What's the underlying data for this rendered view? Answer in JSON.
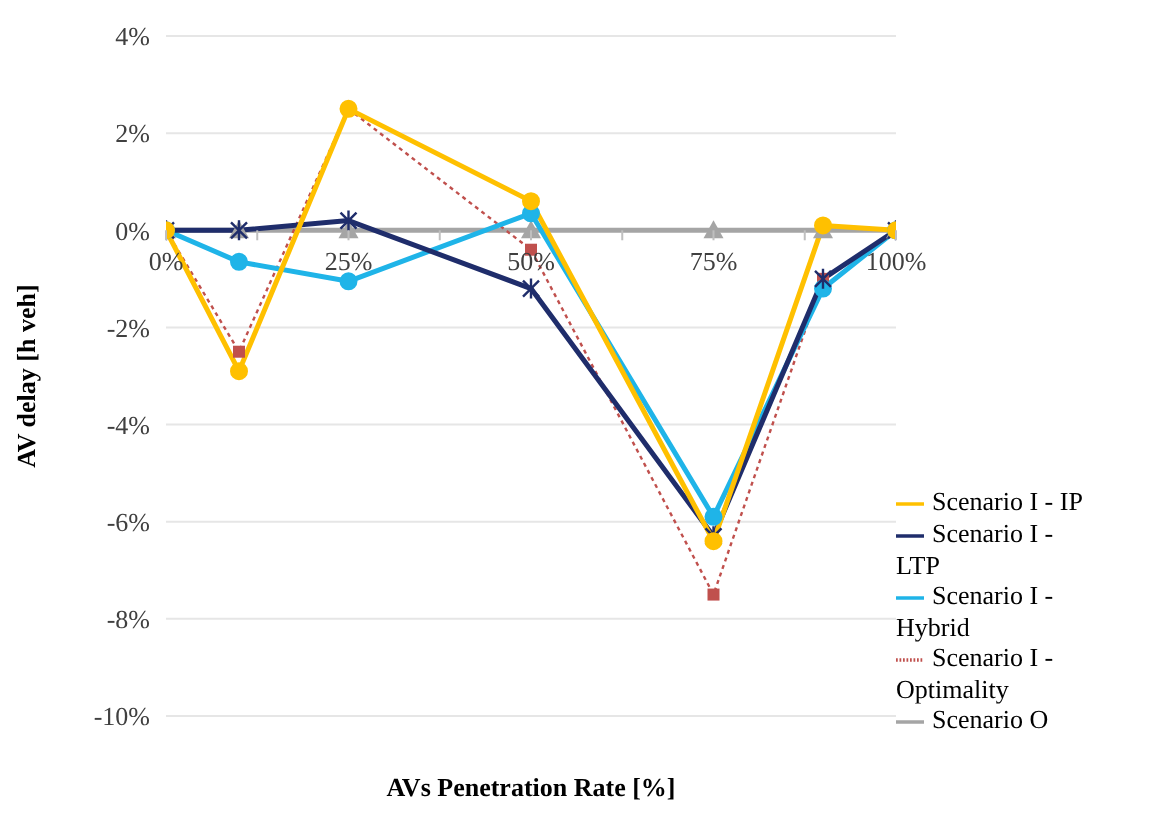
{
  "chart_data": {
    "type": "line",
    "xlabel": "AVs Penetration Rate [%]",
    "ylabel": "AV delay [h veh]",
    "x": [
      0,
      10,
      25,
      50,
      75,
      90,
      100
    ],
    "series": [
      {
        "name": "Scenario I - IP",
        "color": "#ffc000",
        "values": [
          0,
          -2.9,
          2.5,
          0.6,
          -6.4,
          0.1,
          0
        ],
        "marker": "circle",
        "line_style": "solid"
      },
      {
        "name": "Scenario I - LTP",
        "color": "#1f2d6b",
        "values": [
          0,
          0,
          0.2,
          -1.2,
          -6.3,
          -1.0,
          0
        ],
        "marker": "cross",
        "line_style": "solid"
      },
      {
        "name": "Scenario I - Hybrid",
        "color": "#1fb4e8",
        "values": [
          0,
          -0.65,
          -1.05,
          0.35,
          -5.9,
          -1.2,
          0
        ],
        "marker": "circle",
        "line_style": "solid"
      },
      {
        "name": "Scenario I - Optimality",
        "color": "#c0504d",
        "values": [
          0,
          -2.5,
          2.5,
          -0.4,
          -7.5,
          -1.0,
          0
        ],
        "marker": "square",
        "line_style": "dotted"
      },
      {
        "name": "Scenario O",
        "color": "#a5a5a5",
        "values": [
          0,
          0,
          0,
          0,
          0,
          0,
          0
        ],
        "marker": "triangle",
        "line_style": "solid"
      }
    ],
    "xlim": [
      0,
      100
    ],
    "xticks": [
      {
        "value": 0,
        "label": "0%"
      },
      {
        "value": 12.5,
        "label": null
      },
      {
        "value": 25,
        "label": "25%"
      },
      {
        "value": 37.5,
        "label": null
      },
      {
        "value": 50,
        "label": "50%"
      },
      {
        "value": 62.5,
        "label": null
      },
      {
        "value": 75,
        "label": "75%"
      },
      {
        "value": 87.5,
        "label": null
      },
      {
        "value": 100,
        "label": "100%"
      }
    ],
    "ylim": [
      -10,
      4
    ],
    "yticks": [
      {
        "value": -10,
        "label": "-10%"
      },
      {
        "value": -8,
        "label": "-8%"
      },
      {
        "value": -6,
        "label": "-6%"
      },
      {
        "value": -4,
        "label": "-4%"
      },
      {
        "value": -2,
        "label": "-2%"
      },
      {
        "value": 0,
        "label": "0%"
      },
      {
        "value": 2,
        "label": "2%"
      },
      {
        "value": 4,
        "label": "4%"
      }
    ],
    "grid": "y",
    "legend": "bottom right"
  }
}
